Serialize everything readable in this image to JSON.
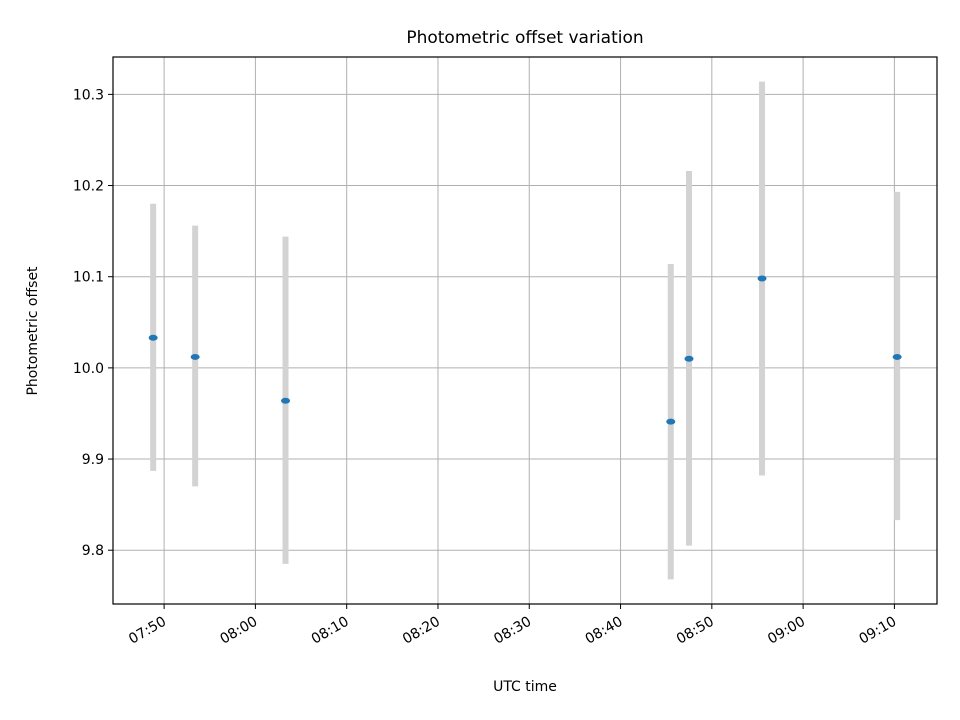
{
  "chart_data": {
    "type": "scatter",
    "title": "Photometric offset variation",
    "xlabel": "UTC time",
    "ylabel": "Photometric offset",
    "x_ticks": [
      "07:50",
      "08:00",
      "08:10",
      "08:20",
      "08:30",
      "08:40",
      "08:50",
      "09:00",
      "09:10"
    ],
    "y_ticks": [
      "9.8",
      "9.9",
      "10.0",
      "10.1",
      "10.2",
      "10.3"
    ],
    "xlim": [
      "07:44:24",
      "09:14:40"
    ],
    "ylim": [
      9.741,
      10.341
    ],
    "grid": true,
    "points": [
      {
        "x": "07:48:48",
        "y": 10.033,
        "ylow": 9.887,
        "yhigh": 10.18
      },
      {
        "x": "07:53:24",
        "y": 10.012,
        "ylow": 9.87,
        "yhigh": 10.156
      },
      {
        "x": "08:03:18",
        "y": 9.964,
        "ylow": 9.785,
        "yhigh": 10.144
      },
      {
        "x": "08:45:30",
        "y": 9.941,
        "ylow": 9.768,
        "yhigh": 10.114
      },
      {
        "x": "08:47:30",
        "y": 10.01,
        "ylow": 9.805,
        "yhigh": 10.216
      },
      {
        "x": "08:55:30",
        "y": 10.098,
        "ylow": 9.882,
        "yhigh": 10.314
      },
      {
        "x": "09:10:18",
        "y": 10.012,
        "ylow": 9.833,
        "yhigh": 10.193
      }
    ],
    "colors": {
      "point": "#1f77b4",
      "errorbar": "#d3d3d3",
      "grid": "#b0b0b0",
      "axis": "#000000"
    }
  }
}
